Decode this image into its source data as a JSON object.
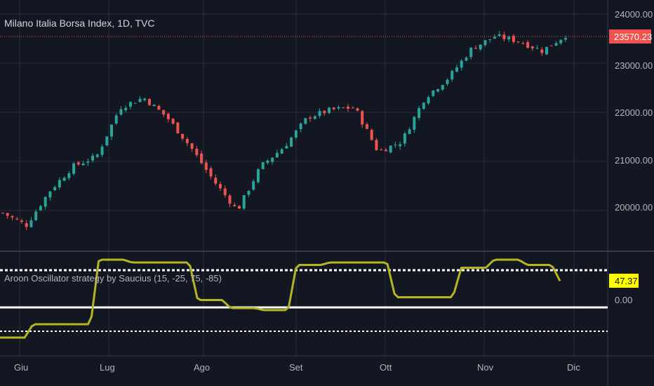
{
  "chart": {
    "title": "Milano Italia Borsa Index, 1D, TVC",
    "last_price_label": "23570.23",
    "price_axis_labels": [
      "24000.00",
      "23000.00",
      "22000.00",
      "21000.00",
      "20000.00"
    ],
    "oscillator_title": "Aroon Oscillator strategy by Saucius (15, -25, 75, -85)",
    "oscillator_value_label": "47.37",
    "oscillator_axis_label": "0.00",
    "time_axis_labels": [
      "Giu",
      "Lug",
      "Ago",
      "Set",
      "Ott",
      "Nov",
      "Dic"
    ]
  },
  "colors": {
    "background": "#131722",
    "grid": "#2a2e39",
    "up": "#26a69a",
    "down": "#ef5350",
    "oscillator_line": "#b5b523",
    "level_lines": "#ffffff",
    "value_badge": "#ffff00",
    "price_badge": "#ef5350"
  },
  "chart_data": [
    {
      "type": "candlestick",
      "title": "Milano Italia Borsa Index, 1D, TVC",
      "x": [
        "Giu",
        "Lug",
        "Ago",
        "Set",
        "Ott",
        "Nov",
        "Dic"
      ],
      "ylim": [
        19500,
        24100
      ],
      "last_price": 23570.23,
      "approx_close_path": [
        [
          "early Giu",
          19950
        ],
        [
          "mid Giu",
          19700
        ],
        [
          "late Giu",
          20400
        ],
        [
          "~Lug 1",
          20900
        ],
        [
          "early Lug",
          21100
        ],
        [
          "mid Lug",
          22100
        ],
        [
          "mid-late Lug",
          22300
        ],
        [
          "late Lug",
          21900
        ],
        [
          "~Ago 1",
          21300
        ],
        [
          "early Ago",
          20600
        ],
        [
          "mid Ago",
          20000
        ],
        [
          "late Ago",
          20900
        ],
        [
          "~Set 1",
          21300
        ],
        [
          "early Set",
          21900
        ],
        [
          "mid Set",
          22050
        ],
        [
          "late Set",
          22100
        ],
        [
          "~Ott 1",
          21200
        ],
        [
          "early Ott",
          21400
        ],
        [
          "mid Ott",
          22300
        ],
        [
          "late Oct",
          22700
        ],
        [
          "~Nov 1",
          23300
        ],
        [
          "early Nov",
          23550
        ],
        [
          "mid Nov",
          23450
        ],
        [
          "late Nov",
          23250
        ],
        [
          "end",
          23570
        ]
      ]
    },
    {
      "type": "line",
      "title": "Aroon Oscillator strategy by Saucius (15, -25, 75, -85)",
      "x": [
        "Giu",
        "Lug",
        "Ago",
        "Set",
        "Ott",
        "Nov",
        "Dic"
      ],
      "ylim": [
        -100,
        100
      ],
      "levels": [
        75,
        15,
        -25,
        -85
      ],
      "last_value": 47.37,
      "approx_series": [
        [
          "Giu-start",
          -93
        ],
        [
          "Giu-early",
          -60
        ],
        [
          "Giu-late",
          -60
        ],
        [
          "~Lug 1",
          100
        ],
        [
          "mid Lug",
          93
        ],
        [
          "late Lug",
          93
        ],
        [
          "~Ago 1",
          0
        ],
        [
          "mid Ago",
          -20
        ],
        [
          "late Ago",
          -25
        ],
        [
          "~Set 1",
          87
        ],
        [
          "mid Set",
          93
        ],
        [
          "late Set",
          93
        ],
        [
          "~Ott 1",
          7
        ],
        [
          "mid Ott",
          7
        ],
        [
          "late Ott",
          80
        ],
        [
          "~Nov 1",
          100
        ],
        [
          "mid Nov",
          87
        ],
        [
          "late Nov",
          47.37
        ]
      ]
    }
  ]
}
